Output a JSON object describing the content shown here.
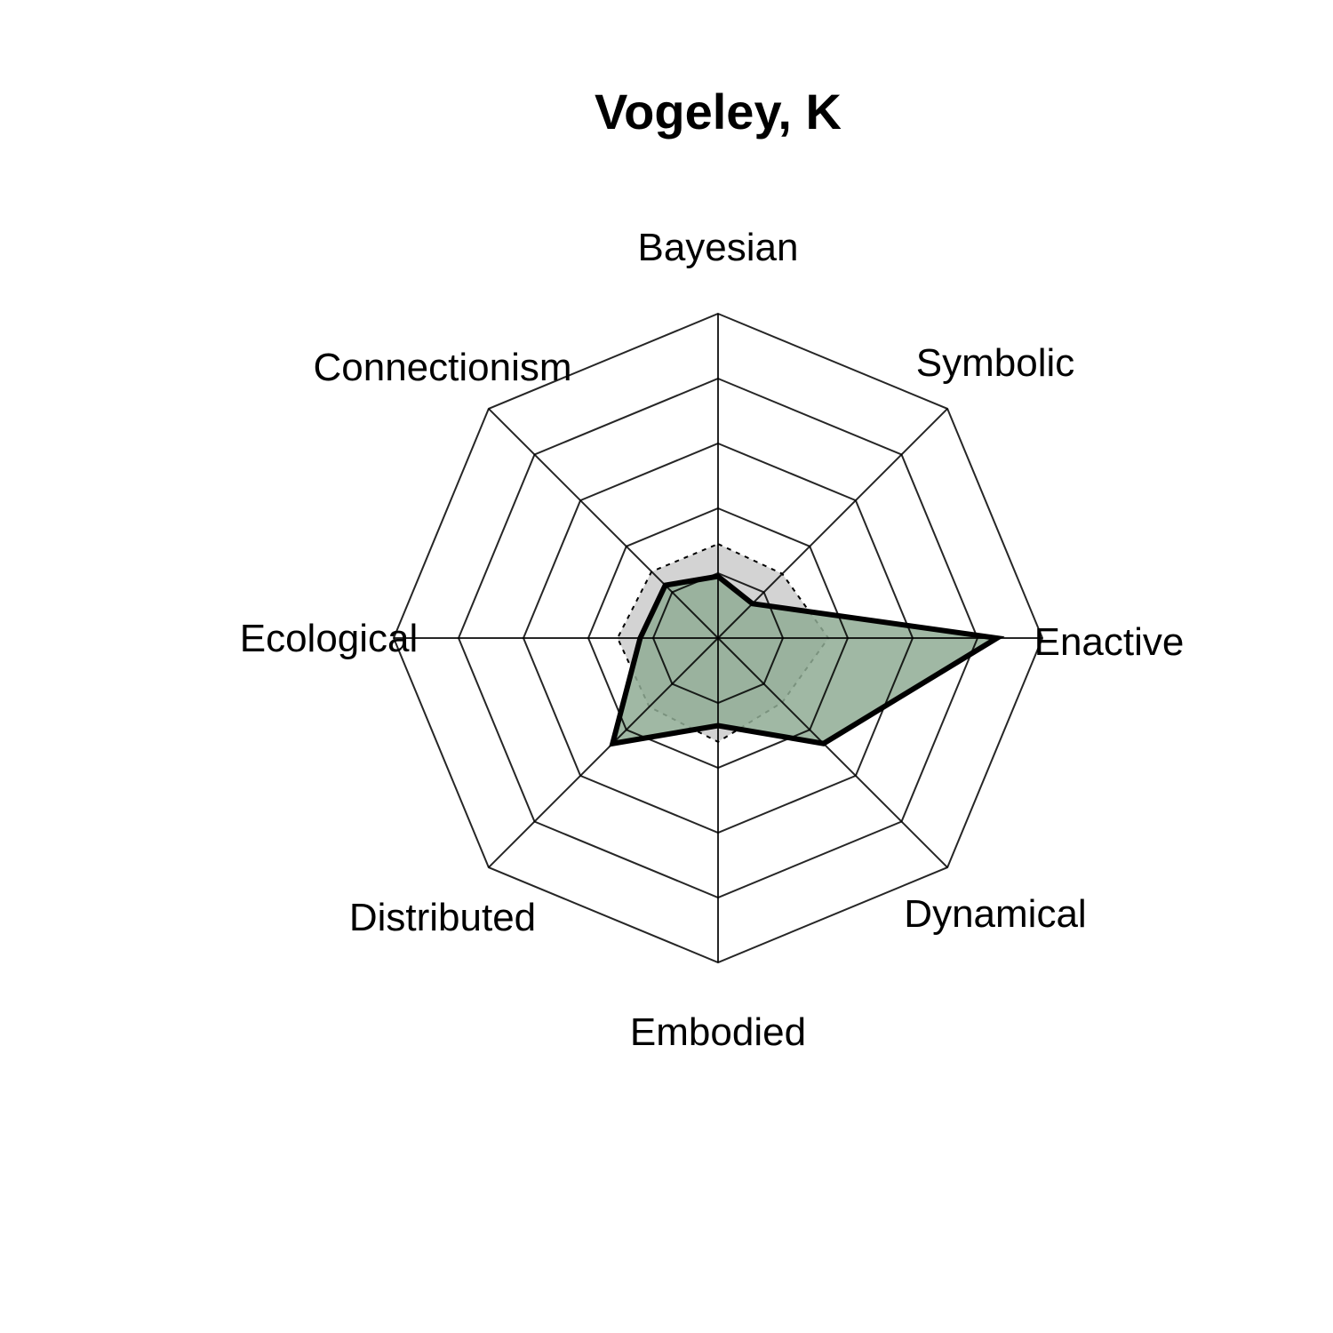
{
  "chart_data": {
    "type": "radar",
    "title": "Vogeley, K",
    "axes": [
      "Bayesian",
      "Symbolic",
      "Enactive",
      "Dynamical",
      "Embodied",
      "Distributed",
      "Ecological",
      "Connectionism"
    ],
    "range": [
      0,
      1
    ],
    "grid_levels": 5,
    "series": [
      {
        "role": "reference",
        "values": [
          0.29,
          0.28,
          0.34,
          0.28,
          0.32,
          0.3,
          0.31,
          0.29
        ],
        "fill": "#d3d3d3",
        "line_style": "dotted",
        "line_color": "#000000"
      },
      {
        "role": "profile",
        "values": [
          0.19,
          0.15,
          0.86,
          0.46,
          0.27,
          0.46,
          0.24,
          0.23
        ],
        "fill": "#8fac94",
        "fill_opacity": 0.85,
        "line_style": "solid",
        "line_color": "#000000"
      }
    ]
  }
}
